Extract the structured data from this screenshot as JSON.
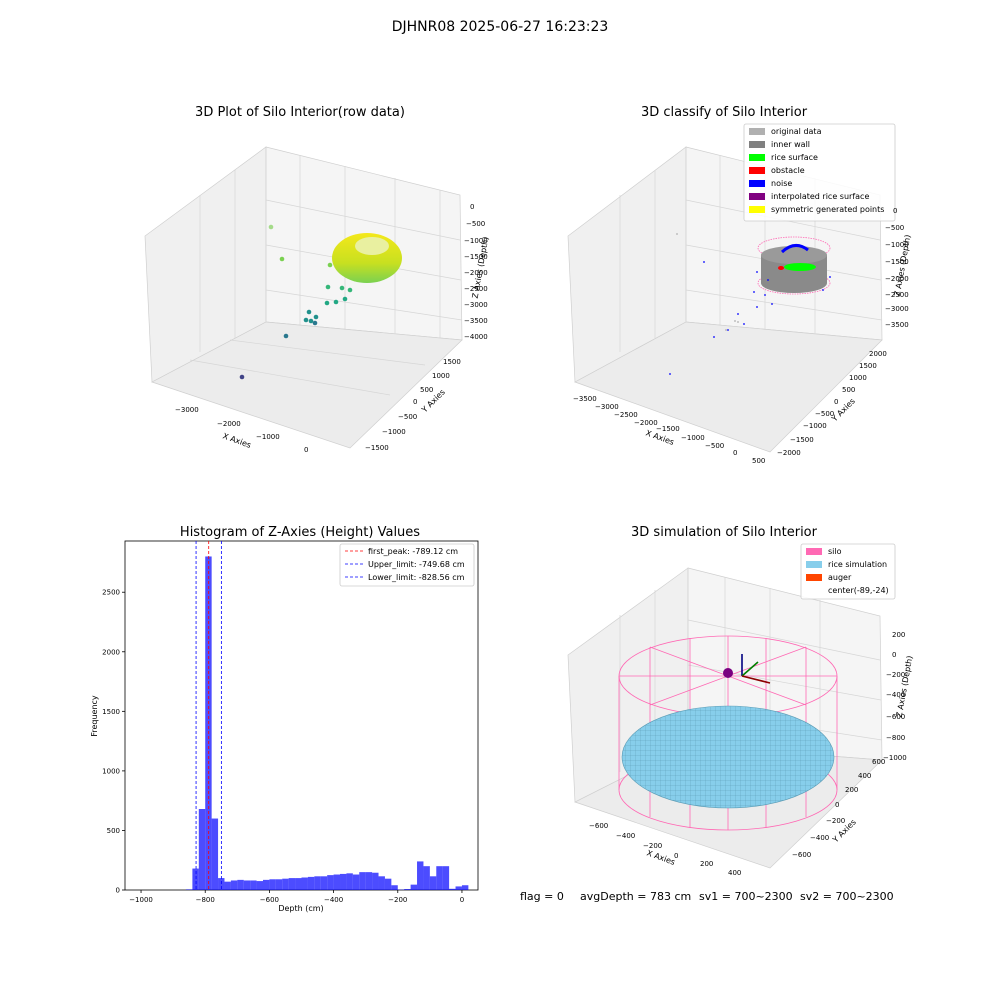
{
  "figure_title": "DJHNR08 2025-06-27 16:23:23",
  "status_line": {
    "flag": "flag = 0",
    "avg_depth": "avgDepth = 783 cm",
    "sv1": "sv1 = 700~2300",
    "sv2": "sv2 = 700~2300"
  },
  "colors": {
    "hist_bar": "#0000ff",
    "peak_line": "#ff0000",
    "limit_line": "#0000ff",
    "pane": "#f2f2f2",
    "pane_grid": "#d0d0d0",
    "silo": "#ff69b4",
    "rice_simulation": "#87ceeb",
    "auger": "#ff4500"
  },
  "chart_data": [
    {
      "type": "scatter",
      "title": "3D Plot of Silo Interior(row data)",
      "xlabel": "X Axies",
      "ylabel": "Y Axies",
      "zlabel": "Z Axies (Depth)",
      "x_ticks": [
        "−3000",
        "−2000",
        "−1000",
        "0"
      ],
      "y_ticks": [
        "−1500",
        "−1000",
        "−500",
        "0",
        "500",
        "1000",
        "1500"
      ],
      "z_ticks": [
        "0",
        "−500",
        "−1000",
        "−1500",
        "−2000",
        "−2500",
        "−3000",
        "−3500",
        "−4000"
      ],
      "xlim": [
        -3500,
        400
      ],
      "ylim": [
        -1600,
        1700
      ],
      "zlim": [
        -4100,
        100
      ],
      "colormap": "viridis",
      "note_on_points": "dense ring of points near the top (z about -1000 to -1800), scattered outliers down to -4000"
    },
    {
      "type": "scatter",
      "title": "3D classify of Silo Interior",
      "xlabel": "X Axies",
      "ylabel": "Y Axies",
      "zlabel": "Z Axies (Depth)",
      "x_ticks": [
        "−3500",
        "−3000",
        "−2500",
        "−2000",
        "−1500",
        "−1000",
        "−500",
        "0",
        "500"
      ],
      "y_ticks": [
        "−2000",
        "−1500",
        "−1000",
        "−500",
        "0",
        "500",
        "1000",
        "1500",
        "2000"
      ],
      "z_ticks": [
        "0",
        "−500",
        "−1000",
        "−1500",
        "−2000",
        "−2500",
        "−3000",
        "−3500"
      ],
      "legend": [
        {
          "label": "original data",
          "color": "#b0b0b0"
        },
        {
          "label": "inner wall",
          "color": "#808080"
        },
        {
          "label": "rice surface",
          "color": "#00ff00"
        },
        {
          "label": "obstacle",
          "color": "#ff0000"
        },
        {
          "label": "noise",
          "color": "#0000ff"
        },
        {
          "label": "interpolated rice surface",
          "color": "#800080"
        },
        {
          "label": "symmetric generated points",
          "color": "#ffff00"
        }
      ],
      "legend_position": "top-right"
    },
    {
      "type": "bar",
      "title": "Histogram of Z-Axies (Height) Values",
      "xlabel": "Depth (cm)",
      "ylabel": "Frequency",
      "xlim": [
        -1050,
        50
      ],
      "ylim": [
        0,
        2930
      ],
      "x_ticks": [
        -1000,
        -800,
        -600,
        -400,
        -200,
        0
      ],
      "x_tick_labels": [
        "−1000",
        "−800",
        "−600",
        "−400",
        "−200",
        "0"
      ],
      "y_ticks": [
        0,
        500,
        1000,
        1500,
        2000,
        2500
      ],
      "y_tick_labels": [
        "0",
        "500",
        "1000",
        "1500",
        "2000",
        "2500"
      ],
      "bin_width": 20,
      "bins": [
        [
          -860,
          5
        ],
        [
          -840,
          180
        ],
        [
          -820,
          680
        ],
        [
          -800,
          2800
        ],
        [
          -780,
          600
        ],
        [
          -760,
          100
        ],
        [
          -740,
          70
        ],
        [
          -720,
          80
        ],
        [
          -700,
          85
        ],
        [
          -680,
          80
        ],
        [
          -660,
          80
        ],
        [
          -640,
          75
        ],
        [
          -620,
          85
        ],
        [
          -600,
          90
        ],
        [
          -580,
          90
        ],
        [
          -560,
          95
        ],
        [
          -540,
          100
        ],
        [
          -520,
          100
        ],
        [
          -500,
          105
        ],
        [
          -480,
          110
        ],
        [
          -460,
          115
        ],
        [
          -440,
          115
        ],
        [
          -420,
          125
        ],
        [
          -400,
          130
        ],
        [
          -380,
          135
        ],
        [
          -360,
          140
        ],
        [
          -340,
          130
        ],
        [
          -320,
          150
        ],
        [
          -300,
          150
        ],
        [
          -280,
          145
        ],
        [
          -260,
          115
        ],
        [
          -240,
          95
        ],
        [
          -220,
          40
        ],
        [
          -200,
          3
        ],
        [
          -180,
          8
        ],
        [
          -160,
          45
        ],
        [
          -140,
          240
        ],
        [
          -120,
          200
        ],
        [
          -100,
          115
        ],
        [
          -80,
          200
        ],
        [
          -60,
          200
        ],
        [
          -40,
          10
        ],
        [
          -20,
          30
        ],
        [
          0,
          40
        ]
      ],
      "vlines": [
        {
          "label": "first_peak: -789.12 cm",
          "x": -789.12,
          "color": "#ff0000"
        },
        {
          "label": "Upper_limit: -749.68 cm",
          "x": -749.68,
          "color": "#0000ff"
        },
        {
          "label": "Lower_limit: -828.56 cm",
          "x": -828.56,
          "color": "#0000ff"
        }
      ],
      "legend_position": "top-right"
    },
    {
      "type": "scatter",
      "title": "3D simulation of Silo Interior",
      "xlabel": "X Axies",
      "ylabel": "Y Axies",
      "zlabel": "Z Axies (Depth)",
      "x_ticks": [
        "−600",
        "−400",
        "−200",
        "0",
        "200",
        "400"
      ],
      "y_ticks": [
        "−600",
        "−400",
        "−200",
        "0",
        "200",
        "400",
        "600"
      ],
      "z_ticks": [
        "200",
        "0",
        "−200",
        "−400",
        "−600",
        "−800",
        "−1000"
      ],
      "legend": [
        {
          "label": "silo",
          "color": "#ff69b4"
        },
        {
          "label": "rice simulation",
          "color": "#87ceeb"
        },
        {
          "label": "auger",
          "color": "#ff4500"
        },
        {
          "label": "center(-89,-24)",
          "color": ""
        }
      ],
      "legend_position": "top-right"
    }
  ]
}
